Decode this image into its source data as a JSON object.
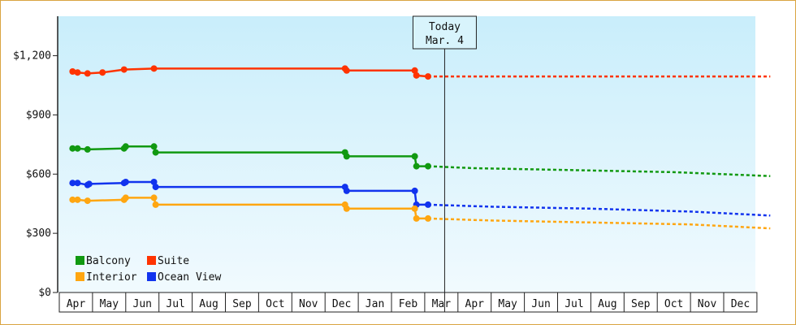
{
  "chart_data": {
    "type": "line",
    "title": "",
    "xlabel": "",
    "ylabel": "",
    "ylim": [
      0,
      1400
    ],
    "y_ticks": [
      {
        "value": 0,
        "label": "$0"
      },
      {
        "value": 300,
        "label": "$300"
      },
      {
        "value": 600,
        "label": "$600"
      },
      {
        "value": 900,
        "label": "$900"
      },
      {
        "value": 1200,
        "label": "$1,200"
      }
    ],
    "x_month_labels": [
      "Apr",
      "May",
      "Jun",
      "Jul",
      "Aug",
      "Sep",
      "Oct",
      "Nov",
      "Dec",
      "Jan",
      "Feb",
      "Mar",
      "Apr",
      "May",
      "Jun",
      "Jul",
      "Aug",
      "Sep",
      "Oct",
      "Nov",
      "Dec"
    ],
    "background_gradient": [
      "#c9eefb",
      "#f1fafe"
    ],
    "today": {
      "line1": "Today",
      "line2": "Mar. 4",
      "month_index": 11.1
    },
    "legend": {
      "placement": "bottom-left"
    },
    "series": [
      {
        "name": "Suite",
        "color": "#ff3300",
        "history": [
          [
            -0.1,
            1120
          ],
          [
            0.05,
            1115
          ],
          [
            0.35,
            1110
          ],
          [
            0.8,
            1115
          ],
          [
            1.45,
            1130
          ],
          [
            2.35,
            1135
          ],
          [
            8.1,
            1135
          ],
          [
            8.15,
            1125
          ],
          [
            10.2,
            1125
          ],
          [
            10.25,
            1100
          ],
          [
            10.6,
            1095
          ]
        ],
        "forecast": [
          [
            10.6,
            1095
          ],
          [
            20.9,
            1095
          ]
        ]
      },
      {
        "name": "Balcony",
        "color": "#119911",
        "history": [
          [
            -0.1,
            730
          ],
          [
            0.05,
            730
          ],
          [
            0.35,
            725
          ],
          [
            1.45,
            730
          ],
          [
            1.5,
            740
          ],
          [
            2.35,
            740
          ],
          [
            2.4,
            710
          ],
          [
            8.1,
            710
          ],
          [
            8.15,
            690
          ],
          [
            10.2,
            690
          ],
          [
            10.25,
            640
          ],
          [
            10.6,
            640
          ]
        ],
        "forecast": [
          [
            10.6,
            640
          ],
          [
            12.0,
            630
          ],
          [
            15.0,
            620
          ],
          [
            18.0,
            610
          ],
          [
            20.9,
            590
          ]
        ]
      },
      {
        "name": "Ocean View",
        "color": "#1133ee",
        "history": [
          [
            -0.1,
            555
          ],
          [
            0.05,
            555
          ],
          [
            0.35,
            545
          ],
          [
            0.4,
            550
          ],
          [
            1.45,
            555
          ],
          [
            1.5,
            560
          ],
          [
            2.35,
            560
          ],
          [
            2.4,
            535
          ],
          [
            8.1,
            535
          ],
          [
            8.15,
            515
          ],
          [
            10.2,
            515
          ],
          [
            10.25,
            445
          ],
          [
            10.6,
            445
          ]
        ],
        "forecast": [
          [
            10.6,
            445
          ],
          [
            12.5,
            435
          ],
          [
            15.5,
            425
          ],
          [
            18.5,
            410
          ],
          [
            20.9,
            390
          ]
        ]
      },
      {
        "name": "Interior",
        "color": "#ffa611",
        "history": [
          [
            -0.1,
            470
          ],
          [
            0.05,
            470
          ],
          [
            0.35,
            465
          ],
          [
            1.45,
            470
          ],
          [
            1.5,
            480
          ],
          [
            2.35,
            480
          ],
          [
            2.4,
            445
          ],
          [
            8.1,
            445
          ],
          [
            8.15,
            425
          ],
          [
            10.2,
            425
          ],
          [
            10.25,
            375
          ],
          [
            10.6,
            375
          ]
        ],
        "forecast": [
          [
            10.6,
            375
          ],
          [
            12.5,
            365
          ],
          [
            15.5,
            355
          ],
          [
            18.5,
            345
          ],
          [
            20.9,
            325
          ]
        ]
      }
    ]
  }
}
